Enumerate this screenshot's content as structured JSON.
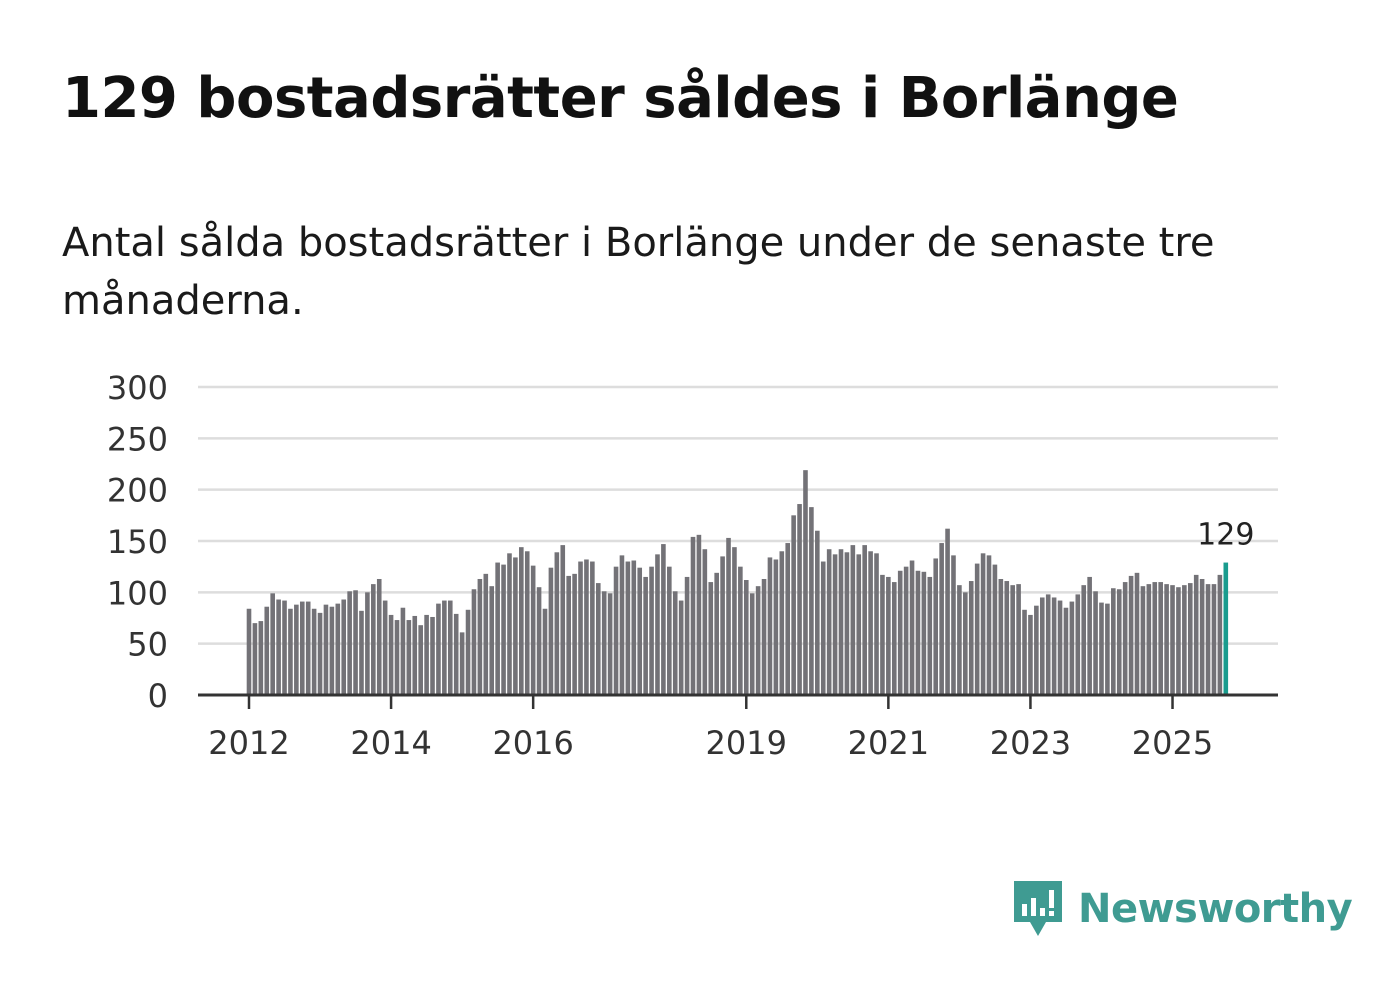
{
  "header": {
    "title": "129 bostadsrätter såldes i Borlänge",
    "subtitle": "Antal sålda bostadsrätter i Borlänge under de senaste tre månaderna."
  },
  "brand": {
    "name": "Newsworthy",
    "icon": "newsworthy-logo-icon",
    "color": "#3f9b92"
  },
  "colors": {
    "bar": "#737277",
    "highlight": "#199c8e",
    "grid": "#dddddd",
    "axis": "#333333"
  },
  "chart_data": {
    "type": "bar",
    "title": "129 bostadsrätter såldes i Borlänge",
    "subtitle": "Antal sålda bostadsrätter i Borlänge under de senaste tre månaderna.",
    "xlabel": "",
    "ylabel": "",
    "ylim": [
      0,
      300
    ],
    "y_ticks": [
      0,
      50,
      100,
      150,
      200,
      250,
      300
    ],
    "x_tick_labels": [
      {
        "label": "2012",
        "month_index": 0
      },
      {
        "label": "2014",
        "month_index": 24
      },
      {
        "label": "2016",
        "month_index": 48
      },
      {
        "label": "2019",
        "month_index": 84
      },
      {
        "label": "2021",
        "month_index": 108
      },
      {
        "label": "2023",
        "month_index": 132
      },
      {
        "label": "2025",
        "month_index": 156
      }
    ],
    "grid": true,
    "start_month": "2012-01",
    "values": [
      84,
      70,
      72,
      86,
      99,
      93,
      92,
      84,
      88,
      91,
      91,
      84,
      80,
      88,
      86,
      89,
      93,
      101,
      102,
      82,
      100,
      108,
      113,
      92,
      78,
      73,
      85,
      73,
      77,
      68,
      78,
      76,
      89,
      92,
      92,
      79,
      61,
      83,
      103,
      113,
      118,
      106,
      129,
      127,
      138,
      134,
      144,
      140,
      126,
      105,
      84,
      124,
      139,
      146,
      116,
      118,
      130,
      132,
      130,
      109,
      101,
      99,
      125,
      136,
      130,
      131,
      124,
      115,
      125,
      137,
      147,
      125,
      101,
      92,
      115,
      154,
      156,
      142,
      110,
      119,
      135,
      153,
      144,
      125,
      112,
      99,
      106,
      113,
      134,
      132,
      140,
      148,
      175,
      186,
      219,
      183,
      160,
      130,
      142,
      137,
      142,
      139,
      146,
      137,
      146,
      140,
      138,
      117,
      115,
      110,
      121,
      125,
      131,
      121,
      120,
      115,
      133,
      148,
      162,
      136,
      107,
      100,
      111,
      128,
      138,
      136,
      127,
      113,
      111,
      107,
      108,
      83,
      78,
      87,
      95,
      98,
      95,
      92,
      85,
      91,
      98,
      107,
      115,
      101,
      90,
      89,
      104,
      103,
      110,
      116,
      119,
      106,
      108,
      110,
      110,
      108,
      107,
      105,
      107,
      109,
      117,
      113,
      108,
      108,
      117,
      129
    ],
    "highlight_last": true,
    "last_value_label": "129"
  }
}
